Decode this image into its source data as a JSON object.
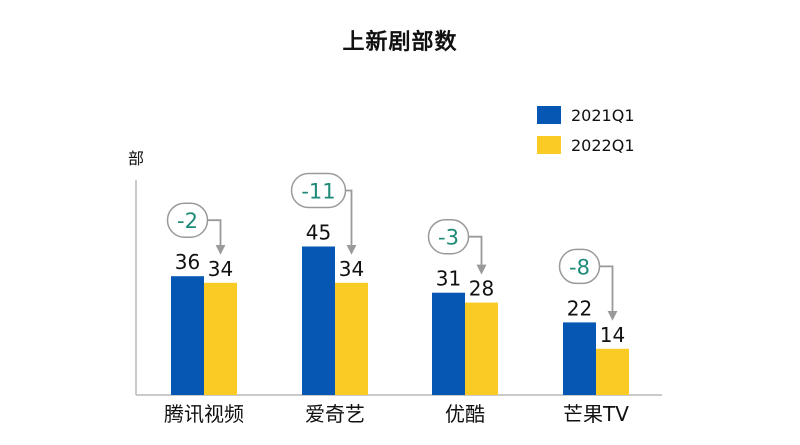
{
  "colors": {
    "series1": "#0657b3",
    "series2": "#fbcb25",
    "diff_text": "#1f8a78",
    "arrow": "#9a9a9a",
    "axis": "#b8b8b8"
  },
  "chart_data": {
    "type": "bar",
    "title": "上新剧部数",
    "xlabel": "",
    "ylabel": "部",
    "ylim": [
      0,
      60
    ],
    "categories": [
      "腾讯视频",
      "爱奇艺",
      "优酷",
      "芒果TV"
    ],
    "series": [
      {
        "name": "2021Q1",
        "values": [
          36,
          45,
          31,
          22
        ]
      },
      {
        "name": "2022Q1",
        "values": [
          34,
          34,
          28,
          14
        ]
      }
    ],
    "annotations": [
      "-2",
      "-11",
      "-3",
      "-8"
    ],
    "legend_position": "top-right"
  }
}
